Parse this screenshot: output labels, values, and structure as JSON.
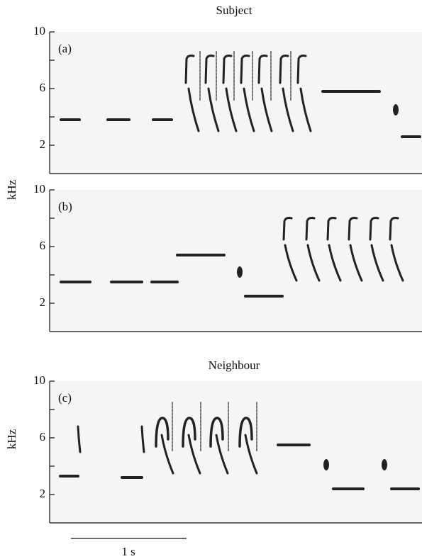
{
  "chart_data": [
    {
      "type": "spectrogram",
      "title": "Subject",
      "panel_label": "(a)",
      "y_label": "kHz",
      "ylim": [
        0,
        10
      ],
      "yticks": [
        2,
        6,
        10
      ],
      "minor_yticks": [
        4,
        8
      ]
    },
    {
      "type": "spectrogram",
      "panel_label": "(b)",
      "ylim": [
        0,
        10
      ],
      "yticks": [
        2,
        6,
        10
      ],
      "minor_yticks": [
        4,
        8
      ]
    },
    {
      "type": "spectrogram",
      "title": "Neighbour",
      "panel_label": "(c)",
      "y_label": "kHz",
      "ylim": [
        0,
        10
      ],
      "yticks": [
        2,
        6,
        10
      ],
      "minor_yticks": [
        4,
        8
      ]
    }
  ],
  "scale_bar_label": "1 s"
}
